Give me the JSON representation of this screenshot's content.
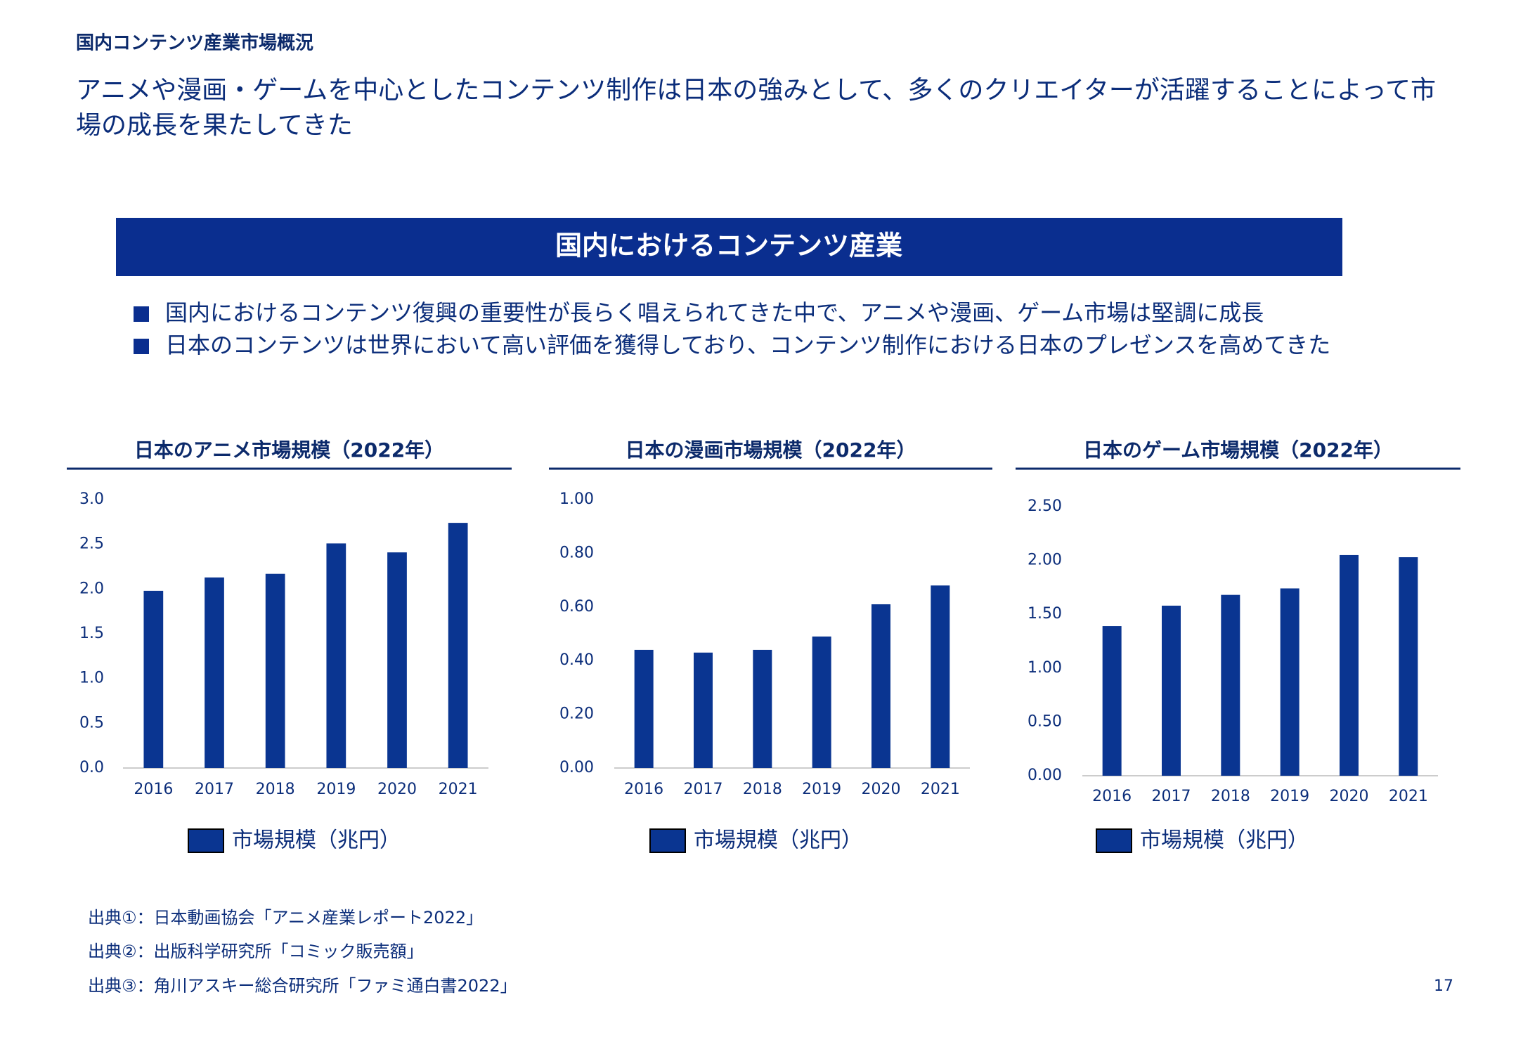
{
  "header": {
    "section": "国内コンテンツ産業市場概況",
    "headline": [
      "アニメや漫画・ゲームを中心としたコンテンツ制作は日本の強みとして、多くのクリエイターが活躍することによって市",
      "場の成長を果たしてきた"
    ]
  },
  "band_title": "国内におけるコンテンツ産業",
  "bullets": [
    "国内におけるコンテンツ復興の重要性が長らく唱えられてきた中で、アニメや漫画、ゲーム市場は堅調に成長",
    "日本のコンテンツは世界において高い評価を獲得しており、コンテンツ制作における日本のプレゼンスを高めてきた"
  ],
  "chart_data": [
    {
      "type": "bar",
      "title": "日本のアニメ市場規模（2022年）",
      "categories": [
        "2016",
        "2017",
        "2018",
        "2019",
        "2020",
        "2021"
      ],
      "series": [
        {
          "name": "市場規模（兆円）",
          "color": "#0a3591",
          "values": [
            1.98,
            2.13,
            2.17,
            2.51,
            2.41,
            2.74
          ]
        }
      ],
      "ylim": [
        0,
        3
      ],
      "yticks": [
        {
          "value": 0,
          "label": "0.0"
        },
        0.5,
        {
          "value": 1,
          "label": "1.0"
        },
        1.5,
        {
          "value": 2,
          "label": "2.0"
        },
        2.5,
        {
          "value": 3,
          "label": "3.0"
        }
      ],
      "grid": false,
      "legend": "bottom"
    },
    {
      "type": "bar",
      "title": "日本の漫画市場規模（2022年）",
      "categories": [
        "2016",
        "2017",
        "2018",
        "2019",
        "2020",
        "2021"
      ],
      "series": [
        {
          "name": "市場規模（兆円）",
          "color": "#0a3591",
          "values": [
            0.44,
            0.43,
            0.44,
            0.49,
            0.61,
            0.68
          ]
        }
      ],
      "ylim": [
        0,
        1
      ],
      "yticks": [
        {
          "value": 0,
          "label": "0.00"
        },
        {
          "value": 0.2,
          "label": "0.20"
        },
        {
          "value": 0.4,
          "label": "0.40"
        },
        {
          "value": 0.6,
          "label": "0.60"
        },
        {
          "value": 0.8,
          "label": "0.80"
        },
        {
          "value": 1,
          "label": "1.00"
        }
      ],
      "grid": false,
      "legend": "bottom"
    },
    {
      "type": "bar",
      "title": "日本のゲーム市場規模（2022年）",
      "categories": [
        "2016",
        "2017",
        "2018",
        "2019",
        "2020",
        "2021"
      ],
      "series": [
        {
          "name": "市場規模（兆円）",
          "color": "#0a3591",
          "values": [
            1.39,
            1.58,
            1.68,
            1.74,
            2.05,
            2.03
          ]
        }
      ],
      "ylim": [
        0,
        2.5
      ],
      "yticks": [
        {
          "value": 0,
          "label": "0.00"
        },
        {
          "value": 0.5,
          "label": "0.50"
        },
        {
          "value": 1,
          "label": "1.00"
        },
        {
          "value": 1.5,
          "label": "1.50"
        },
        {
          "value": 2,
          "label": "2.00"
        },
        {
          "value": 2.5,
          "label": "2.50"
        }
      ],
      "grid": false,
      "legend": "bottom"
    }
  ],
  "sources": [
    "出典①：日本動画協会「アニメ産業レポート2022」",
    "出典②：出版科学研究所「コミック販売額」",
    "出典③：角川アスキー総合研究所「ファミ通白書2022」"
  ],
  "page_number": "17"
}
